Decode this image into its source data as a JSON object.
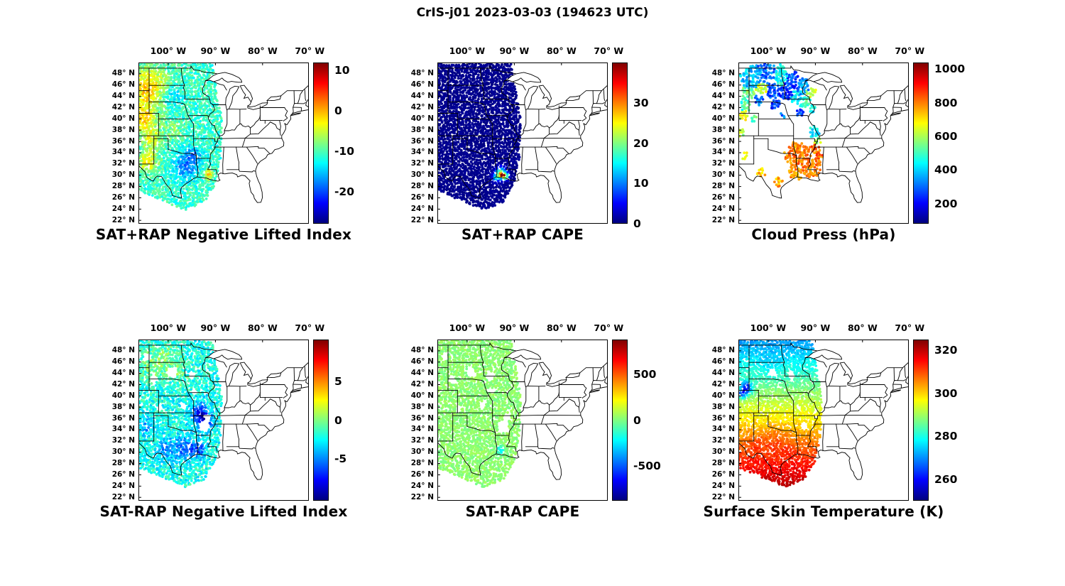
{
  "figure": {
    "title": "CrIS-j01 2023-03-03 (194623 UTC)"
  },
  "chart_data": {
    "type": "scatter",
    "projection": "lat-lon map",
    "layout": "2 rows x 3 columns of geographic scatter panels, jet colorbar at right of each",
    "shared": {
      "lon_range": [
        -106.3,
        -70.2
      ],
      "lat_range": [
        21.4,
        50.0
      ],
      "lon_tick_values": [
        -100,
        -90,
        -80,
        -70
      ],
      "lon_tick_labels": [
        "100° W",
        "90° W",
        "80° W",
        "70° W"
      ],
      "lat_tick_values": [
        48,
        46,
        44,
        42,
        40,
        38,
        36,
        34,
        32,
        30,
        28,
        26,
        24,
        22
      ],
      "lat_tick_labels": [
        "48° N",
        "46° N",
        "44° N",
        "42° N",
        "40° N",
        "38° N",
        "36° N",
        "34° N",
        "32° N",
        "30° N",
        "28° N",
        "26° N",
        "24° N",
        "22° N"
      ],
      "swath_polygon": [
        [
          -106.3,
          50.3
        ],
        [
          -90.8,
          50.3
        ],
        [
          -88.6,
          40.0
        ],
        [
          -88.9,
          33.0
        ],
        [
          -90.0,
          28.5
        ],
        [
          -92.3,
          25.2
        ],
        [
          -96.5,
          23.8
        ],
        [
          -106.3,
          27.3
        ]
      ]
    },
    "panels": [
      {
        "title": "SAT+RAP Negative Lifted Index",
        "colorbar": {
          "vmin": -28,
          "vmax": 12,
          "tick_values": [
            10,
            0,
            -10,
            -20
          ],
          "tick_labels": [
            "10",
            "0",
            "-10",
            "-20"
          ]
        },
        "field": {
          "kind": "swath",
          "base": -11,
          "noise": 2.6,
          "dropout": 0.02,
          "holes": [],
          "blobs": [
            [
              -104.5,
              45.5,
              3.5,
              10
            ],
            [
              -105,
              40,
              2.5,
              9
            ],
            [
              -103.5,
              36.5,
              2,
              6
            ],
            [
              -104.2,
              32.5,
              2,
              8
            ],
            [
              -99,
              38,
              2,
              3
            ],
            [
              -96.5,
              31.5,
              2.5,
              -7
            ],
            [
              -94.5,
              33.5,
              1.6,
              -6
            ],
            [
              -91.3,
              30.2,
              0.9,
              10
            ],
            [
              -99,
              44,
              2,
              -3
            ],
            [
              -101,
              47.5,
              2,
              2
            ]
          ]
        }
      },
      {
        "title": "SAT+RAP CAPE",
        "colorbar": {
          "vmin": 0,
          "vmax": 40,
          "tick_values": [
            30,
            20,
            10,
            0
          ],
          "tick_labels": [
            "30",
            "20",
            "10",
            "0"
          ]
        },
        "field": {
          "kind": "swath",
          "base": 0.6,
          "noise": 0.5,
          "dropout": 0.0,
          "holes": [],
          "blobs": [
            [
              -92.9,
              30.4,
              1.0,
              22
            ],
            [
              -93.9,
              29.6,
              0.7,
              12
            ],
            [
              -91.9,
              29.9,
              0.6,
              26
            ],
            [
              -92.6,
              30.1,
              0.35,
              35
            ]
          ]
        }
      },
      {
        "title": "Cloud Press (hPa)",
        "colorbar": {
          "vmin": 80,
          "vmax": 1040,
          "tick_values": [
            1000,
            800,
            600,
            400,
            200
          ],
          "tick_labels": [
            "1000",
            "800",
            "600",
            "400",
            "200"
          ]
        },
        "field": {
          "kind": "clusters",
          "noise": 70,
          "clusters": [
            [
              -103.5,
              47.5,
              2.2,
              380
            ],
            [
              -100.5,
              48.3,
              2.0,
              300
            ],
            [
              -97.5,
              47.8,
              1.8,
              450
            ],
            [
              -95.0,
              46.8,
              1.8,
              260
            ],
            [
              -92.8,
              45.8,
              1.5,
              350
            ],
            [
              -104.3,
              44.8,
              1.6,
              550
            ],
            [
              -101.5,
              45.8,
              1.5,
              620
            ],
            [
              -99.0,
              45.0,
              1.4,
              280
            ],
            [
              -96.5,
              44.8,
              1.5,
              240
            ],
            [
              -94.0,
              43.8,
              1.4,
              420
            ],
            [
              -104.8,
              42.3,
              1.2,
              500
            ],
            [
              -102.0,
              43.2,
              1.0,
              300
            ],
            [
              -98.5,
              42.6,
              1.0,
              240
            ],
            [
              -92.2,
              43.0,
              1.2,
              520
            ],
            [
              -90.8,
              44.8,
              1.0,
              600
            ],
            [
              -93.2,
              41.2,
              0.9,
              250
            ],
            [
              -90.5,
              41.8,
              0.8,
              450
            ],
            [
              -90.2,
              37.6,
              1.1,
              430
            ],
            [
              -89.6,
              36.2,
              0.8,
              600
            ],
            [
              -93.0,
              33.2,
              2.4,
              800
            ],
            [
              -91.3,
              31.6,
              2.0,
              810
            ],
            [
              -93.8,
              31.0,
              1.8,
              790
            ],
            [
              -90.5,
              33.9,
              1.6,
              820
            ],
            [
              -94.3,
              34.6,
              1.4,
              780
            ],
            [
              -90.0,
              31.2,
              1.3,
              800
            ],
            [
              -89.5,
              33.0,
              1.1,
              810
            ],
            [
              -95.5,
              33.5,
              1.2,
              790
            ],
            [
              -105.2,
              40.6,
              0.9,
              650
            ],
            [
              -103.0,
              40.0,
              0.7,
              520
            ],
            [
              -105.5,
              37.5,
              0.8,
              600
            ],
            [
              -96.8,
              40.8,
              0.7,
              300
            ],
            [
              -105.0,
              33.5,
              0.8,
              700
            ],
            [
              -101.5,
              30.5,
              0.9,
              750
            ],
            [
              -97.8,
              28.8,
              0.8,
              760
            ]
          ]
        }
      },
      {
        "title": "SAT-RAP Negative Lifted Index",
        "colorbar": {
          "vmin": -10.5,
          "vmax": 10.5,
          "tick_values": [
            5,
            0,
            -5
          ],
          "tick_labels": [
            "5",
            "0",
            "-5"
          ]
        },
        "field": {
          "kind": "swath",
          "base": -2.2,
          "noise": 1.6,
          "dropout": 0.07,
          "holes": [
            [
              -99.2,
              44.2,
              1.0
            ],
            [
              -103.2,
              43.0,
              0.8
            ],
            [
              -96.8,
              38.2,
              0.7
            ],
            [
              -95.0,
              43.6,
              0.8
            ],
            [
              -92.3,
              34.6,
              1.1
            ],
            [
              -91.6,
              36.2,
              0.7
            ],
            [
              -104.6,
              47.0,
              0.7
            ],
            [
              -94.6,
              40.8,
              0.6
            ],
            [
              -101.8,
              37.8,
              0.6
            ]
          ],
          "blobs": [
            [
              -93.2,
              36.8,
              1.8,
              -6
            ],
            [
              -91.8,
              35.2,
              1.4,
              -5
            ],
            [
              -96.5,
              30.8,
              2.2,
              -3.5
            ],
            [
              -100.5,
              30.5,
              2.0,
              -2.5
            ],
            [
              -103,
              45.5,
              3,
              2.2
            ],
            [
              -99.5,
              47,
              2.5,
              1.8
            ],
            [
              -97.5,
              43.5,
              2.0,
              1.5
            ],
            [
              -104.5,
              34.5,
              1.5,
              -2.5
            ],
            [
              -93.5,
              30.5,
              1.5,
              -4
            ]
          ]
        }
      },
      {
        "title": "SAT-RAP CAPE",
        "colorbar": {
          "vmin": -880,
          "vmax": 880,
          "tick_values": [
            500,
            0,
            -500
          ],
          "tick_labels": [
            "500",
            "0",
            "-500"
          ]
        },
        "field": {
          "kind": "swath",
          "base": 25,
          "noise": 45,
          "dropout": 0.07,
          "holes": [
            [
              -99.2,
              44.2,
              1.0
            ],
            [
              -103.2,
              43.0,
              0.8
            ],
            [
              -96.8,
              38.2,
              0.7
            ],
            [
              -95.0,
              43.6,
              0.8
            ],
            [
              -92.3,
              34.6,
              1.1
            ],
            [
              -91.6,
              36.2,
              0.7
            ],
            [
              -104.6,
              47.0,
              0.7
            ],
            [
              -94.6,
              40.8,
              0.6
            ],
            [
              -101.8,
              37.8,
              0.6
            ]
          ],
          "blobs": [
            [
              -92.9,
              30.4,
              0.8,
              -250
            ]
          ]
        }
      },
      {
        "title": "Surface Skin Temperature (K)",
        "colorbar": {
          "vmin": 250,
          "vmax": 325,
          "tick_values": [
            320,
            300,
            280,
            260
          ],
          "tick_labels": [
            "320",
            "300",
            "280",
            "260"
          ]
        },
        "field": {
          "kind": "swath",
          "base": 0,
          "noise": 2.2,
          "dropout": 0.03,
          "lat_gradient": {
            "ref_lat": 26,
            "ref_val": 318,
            "slope": -2.0
          },
          "holes": [
            [
              -99.2,
              44.2,
              0.8
            ],
            [
              -95.0,
              43.6,
              0.7
            ],
            [
              -92.3,
              34.6,
              0.8
            ]
          ],
          "blobs": [
            [
              -104.6,
              41.4,
              1.2,
              -28
            ],
            [
              -105.6,
              40.3,
              0.8,
              -20
            ],
            [
              -98.5,
              32.5,
              2.5,
              4
            ],
            [
              -102.5,
              31.5,
              2.0,
              4
            ],
            [
              -95.5,
              30.5,
              1.5,
              3
            ],
            [
              -99.5,
              45.5,
              2.5,
              -3
            ]
          ]
        }
      }
    ]
  }
}
